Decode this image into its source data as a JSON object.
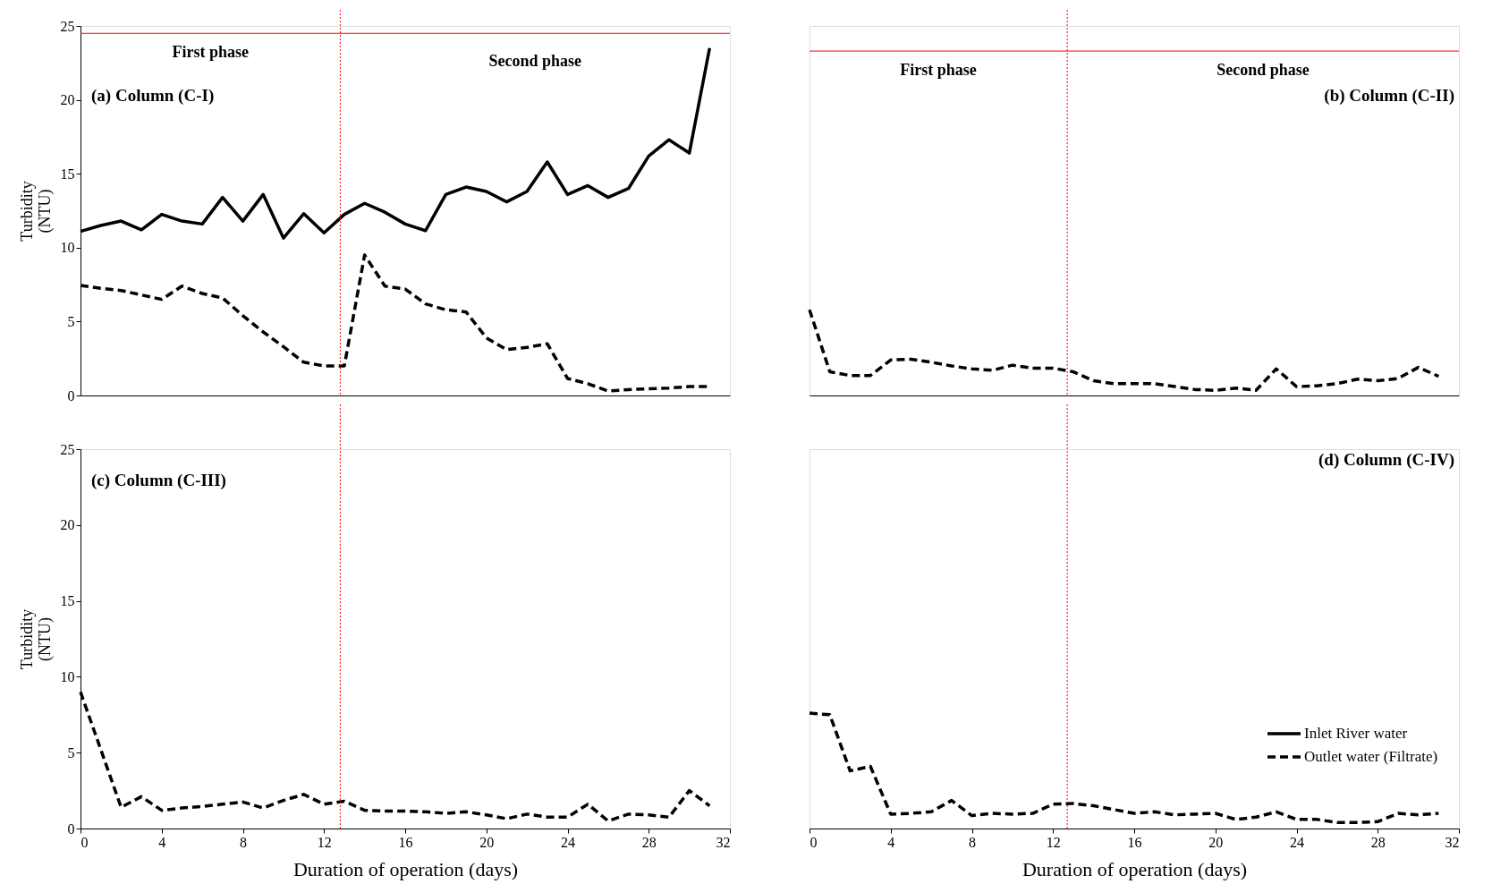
{
  "chart_data": [
    {
      "type": "line",
      "title": "(a) Column (C-I)",
      "ylabel": "Turbidity\n(NTU)",
      "x": [
        0,
        1,
        2,
        3,
        4,
        5,
        6,
        7,
        8,
        9,
        10,
        11,
        12,
        13,
        14,
        15,
        16,
        17,
        18,
        19,
        20,
        21,
        22,
        23,
        24,
        25,
        26,
        27,
        28,
        29,
        30,
        31
      ],
      "series": [
        {
          "color": "#000000",
          "line_style": "solid",
          "values": [
            11.1,
            11.5,
            11.8,
            11.2,
            12.25,
            11.8,
            11.6,
            13.4,
            11.8,
            13.6,
            10.65,
            12.3,
            11.0,
            12.25,
            13.0,
            12.4,
            11.6,
            11.15,
            13.6,
            14.1,
            13.8,
            13.1,
            13.8,
            15.8,
            13.6,
            14.2,
            13.4,
            14.0,
            16.2,
            17.3,
            16.4,
            23.5
          ]
        },
        {
          "color": "#000000",
          "line_style": "dashed",
          "values": [
            7.45,
            7.25,
            7.1,
            6.8,
            6.5,
            7.4,
            6.9,
            6.6,
            5.4,
            4.3,
            3.3,
            2.25,
            2.0,
            2.0,
            9.5,
            7.4,
            7.2,
            6.2,
            5.8,
            5.65,
            3.9,
            3.1,
            3.25,
            3.5,
            1.15,
            0.8,
            0.3,
            0.4,
            0.45,
            0.5,
            0.6,
            0.6
          ]
        }
      ],
      "xlim": [
        0,
        32
      ],
      "ylim": [
        0,
        25
      ],
      "yticks": [
        0,
        5,
        10,
        15,
        20,
        25
      ],
      "tick_labels": "y",
      "ref_lines": [
        {
          "axis": "x",
          "value": 12.8,
          "color": "#ff0000",
          "line_style": "dotted"
        },
        {
          "axis": "y",
          "value": 24.5,
          "color": "#ff0000",
          "line_style": "solid"
        }
      ],
      "annotations": [
        "First phase",
        "Second phase"
      ],
      "legend": false,
      "grid": false
    },
    {
      "type": "line",
      "title": "(b) Column (C-II)",
      "x": [
        0,
        1,
        2,
        3,
        4,
        5,
        6,
        7,
        8,
        9,
        10,
        11,
        12,
        13,
        14,
        15,
        16,
        17,
        18,
        19,
        20,
        21,
        22,
        23,
        24,
        25,
        26,
        27,
        28,
        29,
        30,
        31
      ],
      "series": [
        {
          "color": "#000000",
          "line_style": "dashed",
          "values": [
            5.8,
            1.6,
            1.35,
            1.35,
            2.4,
            2.45,
            2.25,
            2.0,
            1.8,
            1.7,
            2.05,
            1.85,
            1.85,
            1.6,
            1.0,
            0.8,
            0.8,
            0.8,
            0.6,
            0.4,
            0.35,
            0.5,
            0.35,
            1.8,
            0.6,
            0.65,
            0.8,
            1.1,
            1.0,
            1.15,
            1.9,
            1.3
          ]
        }
      ],
      "xlim": [
        0,
        32
      ],
      "ylim": [
        0,
        25
      ],
      "tick_labels": false,
      "ref_lines": [
        {
          "axis": "x",
          "value": 12.7,
          "color": "#ff0000",
          "line_style": "dotted"
        },
        {
          "axis": "y",
          "value": 23.3,
          "color": "#ff0000",
          "line_style": "solid"
        }
      ],
      "annotations": [
        "First phase",
        "Second phase"
      ],
      "legend": false,
      "grid": false
    },
    {
      "type": "line",
      "title": "(c) Column (C-III)",
      "ylabel": "Turbidity\n(NTU)",
      "xlabel": "Duration of operation (days)",
      "x": [
        0,
        1,
        2,
        3,
        4,
        5,
        6,
        7,
        8,
        9,
        10,
        11,
        12,
        13,
        14,
        15,
        16,
        17,
        18,
        19,
        20,
        21,
        22,
        23,
        24,
        25,
        26,
        27,
        28,
        29,
        30,
        31
      ],
      "series": [
        {
          "color": "#000000",
          "line_style": "dashed",
          "values": [
            9.0,
            5.2,
            1.4,
            2.1,
            1.2,
            1.35,
            1.45,
            1.6,
            1.75,
            1.35,
            1.85,
            2.25,
            1.6,
            1.8,
            1.2,
            1.15,
            1.15,
            1.1,
            1.0,
            1.1,
            0.9,
            0.65,
            0.95,
            0.75,
            0.75,
            1.6,
            0.5,
            0.95,
            0.9,
            0.75,
            2.5,
            1.5
          ]
        }
      ],
      "xlim": [
        0,
        32
      ],
      "ylim": [
        0,
        25
      ],
      "xticks": [
        0,
        4,
        8,
        12,
        16,
        20,
        24,
        28,
        32
      ],
      "yticks": [
        0,
        5,
        10,
        15,
        20,
        25
      ],
      "ref_lines": [
        {
          "axis": "x",
          "value": 12.8,
          "color": "#ff0000",
          "line_style": "dotted"
        }
      ],
      "legend": false,
      "grid": false
    },
    {
      "type": "line",
      "title": "(d) Column (C-IV)",
      "xlabel": "Duration of operation (days)",
      "x": [
        0,
        1,
        2,
        3,
        4,
        5,
        6,
        7,
        8,
        9,
        10,
        11,
        12,
        13,
        14,
        15,
        16,
        17,
        18,
        19,
        20,
        21,
        22,
        23,
        24,
        25,
        26,
        27,
        28,
        29,
        30,
        31
      ],
      "series": [
        {
          "name": "Inlet River water",
          "color": "#000000",
          "line_style": "solid",
          "values": [
            null,
            null,
            null,
            null,
            null,
            null,
            null,
            null,
            null,
            null,
            null,
            null,
            null,
            null,
            null,
            null,
            null,
            null,
            null,
            null,
            null,
            null,
            null,
            null,
            null,
            null,
            null,
            null,
            null,
            null,
            null,
            null
          ]
        },
        {
          "name": "Outlet water (Filtrate)",
          "color": "#000000",
          "line_style": "dashed",
          "values": [
            7.6,
            7.5,
            3.8,
            4.1,
            0.95,
            1.0,
            1.1,
            1.85,
            0.85,
            1.0,
            0.95,
            1.0,
            1.6,
            1.65,
            1.5,
            1.25,
            1.0,
            1.1,
            0.9,
            0.95,
            1.0,
            0.6,
            0.75,
            1.1,
            0.6,
            0.6,
            0.4,
            0.4,
            0.45,
            1.0,
            0.9,
            1.0
          ]
        }
      ],
      "xlim": [
        0,
        32
      ],
      "ylim": [
        0,
        25
      ],
      "xticks": [
        0,
        4,
        8,
        12,
        16,
        20,
        24,
        28,
        32
      ],
      "tick_labels": "x",
      "ref_lines": [
        {
          "axis": "x",
          "value": 12.7,
          "color": "#ff0000",
          "line_style": "dotted"
        }
      ],
      "legend": "right",
      "grid": false
    }
  ]
}
